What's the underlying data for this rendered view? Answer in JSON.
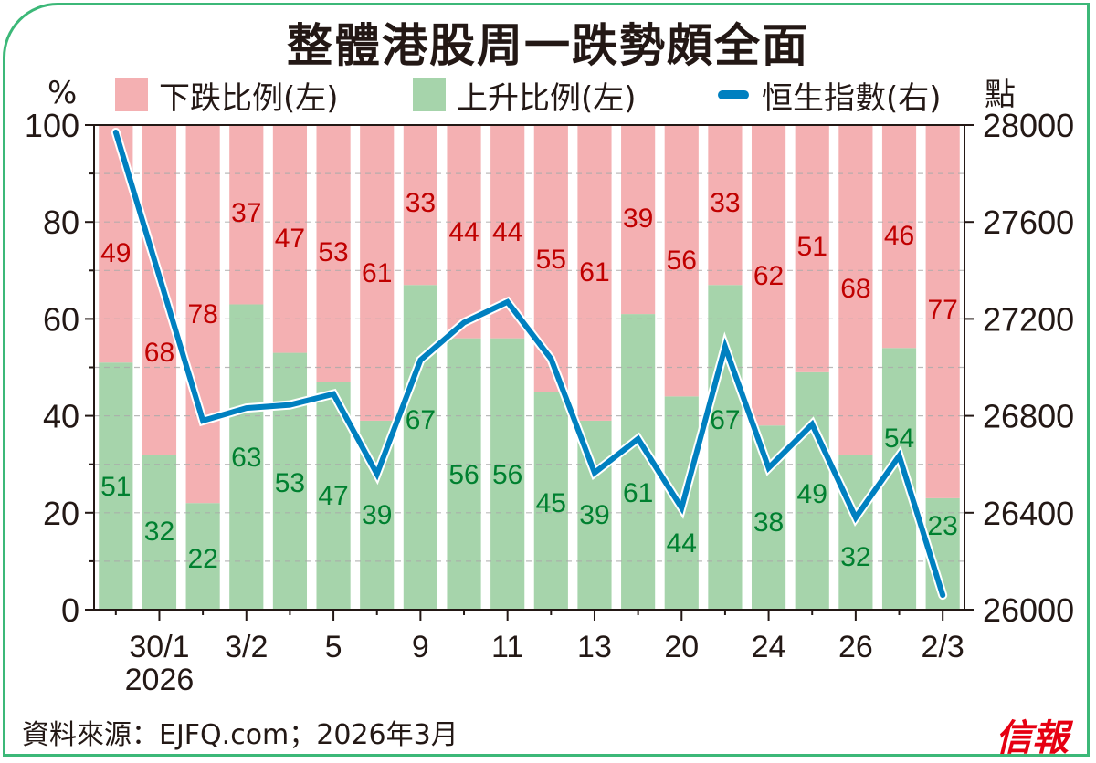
{
  "title": "整體港股周一跌勢頗全面",
  "legend": {
    "fall": "下跌比例(左)",
    "rise": "上升比例(左)",
    "hsi": "恒生指數(右)"
  },
  "left_unit": "%",
  "right_unit": "點",
  "source": "資料來源：EJFQ.com；2026年3月",
  "logo": "信報",
  "colors": {
    "fall": "#f4b0b2",
    "rise": "#a6d4ab",
    "line": "#0080c0",
    "fall_label": "#c00000",
    "rise_label": "#008030",
    "frame": "#3cb878"
  },
  "chart_data": {
    "type": "bar",
    "stacked": true,
    "title": "整體港股周一跌勢頗全面",
    "categories": [
      "",
      "30/1",
      "",
      "3/2",
      "",
      "5",
      "",
      "9",
      "",
      "11",
      "",
      "13",
      "",
      "20",
      "",
      "24",
      "",
      "26",
      "",
      "2/3"
    ],
    "x_tick_labels": [
      "30/1",
      "3/2",
      "5",
      "9",
      "11",
      "13",
      "20",
      "24",
      "26",
      "2/3"
    ],
    "x_year_label": "2026",
    "series": [
      {
        "name": "上升比例(左)",
        "type": "bar",
        "axis": "left",
        "values": [
          51,
          32,
          22,
          63,
          53,
          47,
          39,
          67,
          56,
          56,
          45,
          39,
          61,
          44,
          67,
          38,
          49,
          32,
          54,
          23
        ]
      },
      {
        "name": "下跌比例(左)",
        "type": "bar",
        "axis": "left",
        "values": [
          49,
          68,
          78,
          37,
          47,
          53,
          61,
          33,
          44,
          44,
          55,
          61,
          39,
          56,
          33,
          62,
          51,
          68,
          46,
          77
        ]
      },
      {
        "name": "恒生指數(右)",
        "type": "line",
        "axis": "right",
        "values": [
          27970,
          27375,
          26780,
          26832,
          26845,
          26890,
          26560,
          27030,
          27185,
          27270,
          27035,
          26565,
          26705,
          26420,
          27085,
          26585,
          26765,
          26380,
          26635,
          26060
        ]
      }
    ],
    "ylim_left": [
      0,
      100
    ],
    "yticks_left": [
      "0",
      "20",
      "40",
      "60",
      "80",
      "100"
    ],
    "ylim_right": [
      26000,
      28000
    ],
    "yticks_right": [
      "26000",
      "26400",
      "26800",
      "27200",
      "27600",
      "28000"
    ],
    "ylabel_left": "%",
    "ylabel_right": "點",
    "grid": true,
    "legend_position": "top"
  }
}
